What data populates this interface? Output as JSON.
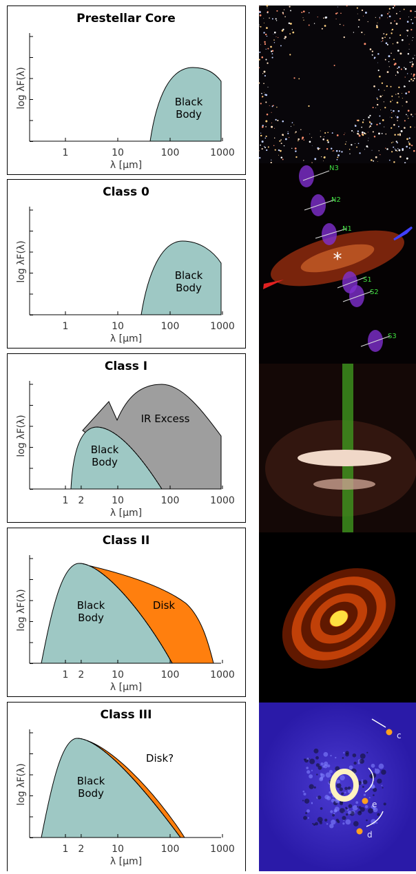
{
  "panels": [
    {
      "title": "Prestellar Core",
      "y_label": "log λF(λ)",
      "x_label": "λ [μm]",
      "x_ticks": [
        "1",
        "10",
        "100",
        "1000"
      ],
      "regions": [
        [
          "Black",
          "Body"
        ]
      ]
    },
    {
      "title": "Class 0",
      "y_label": "log λF(λ)",
      "x_label": "λ [μm]",
      "x_ticks": [
        "1",
        "10",
        "100",
        "1000"
      ],
      "regions": [
        [
          "Black",
          "Body"
        ]
      ],
      "image_labels": [
        "N3",
        "N2",
        "N1",
        "S1",
        "S2",
        "S3"
      ]
    },
    {
      "title": "Class I",
      "y_label": "log λF(λ)",
      "x_label": "λ [μm]",
      "x_ticks": [
        "1",
        "2",
        "10",
        "100",
        "1000"
      ],
      "regions": [
        [
          "Black",
          "Body"
        ],
        [
          "IR Excess"
        ]
      ]
    },
    {
      "title": "Class II",
      "y_label": "log λF(λ)",
      "x_label": "λ [μm]",
      "x_ticks": [
        "1",
        "2",
        "10",
        "100",
        "1000"
      ],
      "regions": [
        [
          "Black",
          "Body"
        ],
        [
          "Disk"
        ]
      ]
    },
    {
      "title": "Class III",
      "y_label": "log λF(λ)",
      "x_label": "λ [μm]",
      "x_ticks": [
        "1",
        "2",
        "10",
        "100",
        "1000"
      ],
      "regions": [
        [
          "Black",
          "Body"
        ],
        [
          "Disk?"
        ]
      ],
      "image_labels": [
        "c",
        "e",
        "d"
      ]
    }
  ]
}
